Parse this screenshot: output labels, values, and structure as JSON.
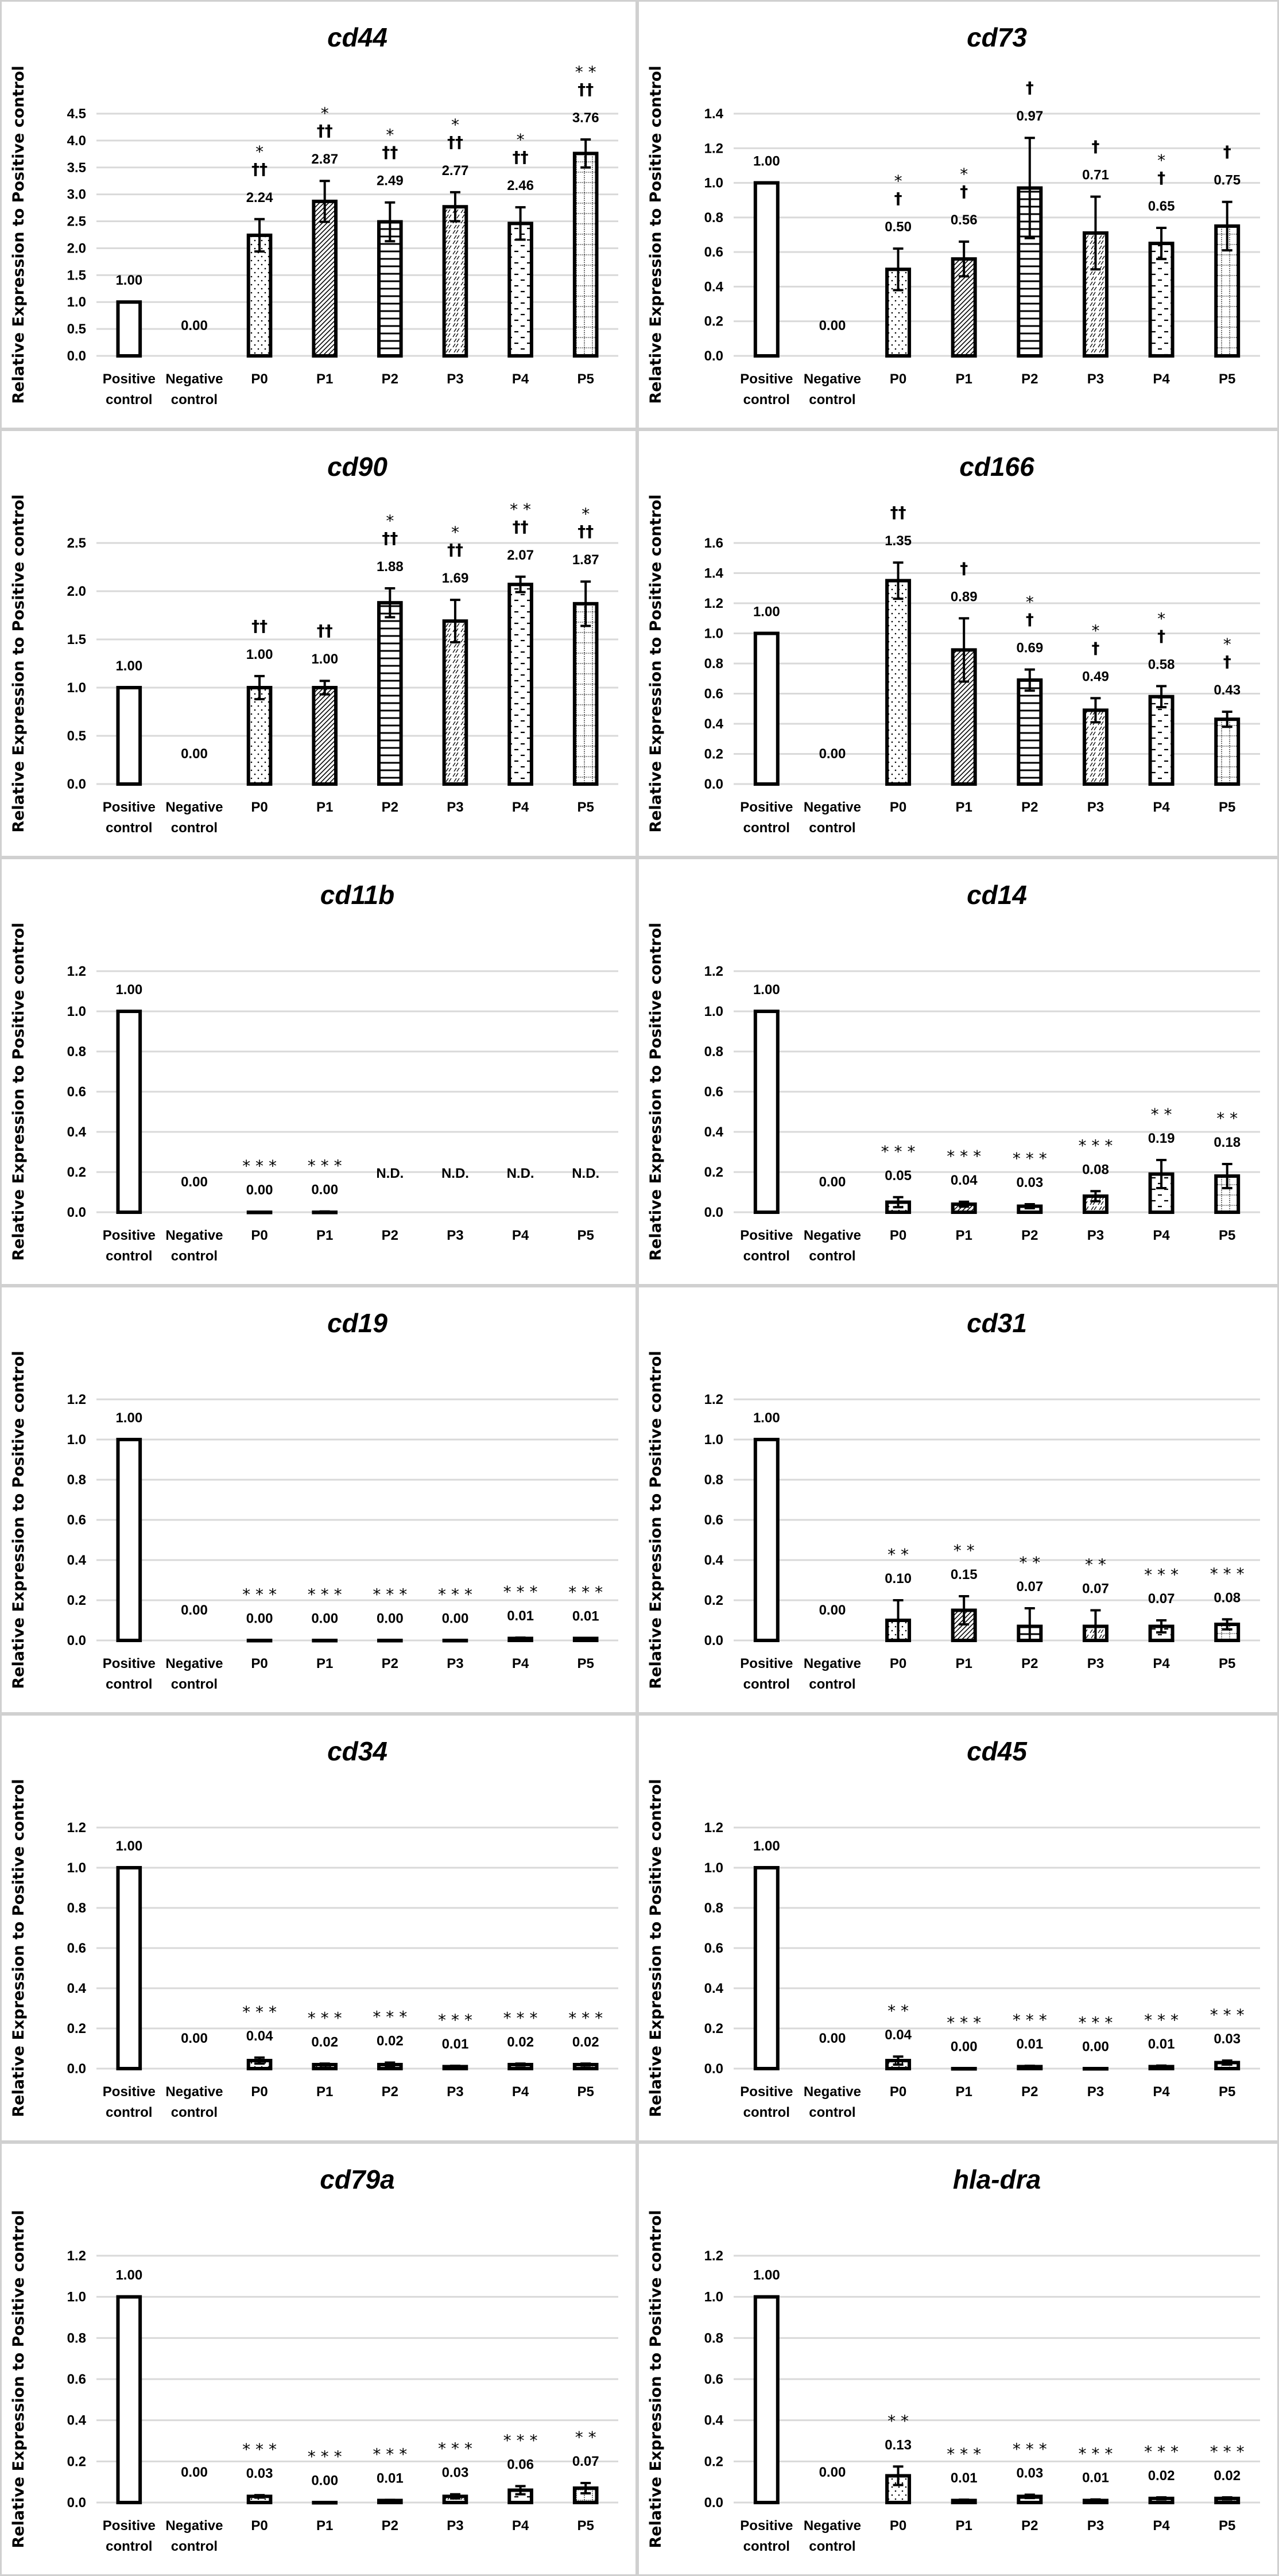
{
  "figure": {
    "ylabel": "Relative Expression to Positive control",
    "categories": [
      "Positive control",
      "Negative control",
      "P0",
      "P1",
      "P2",
      "P3",
      "P4",
      "P5"
    ],
    "category_lines": [
      [
        "Positive",
        "control"
      ],
      [
        "Negative",
        "control"
      ],
      [
        "P0"
      ],
      [
        "P1"
      ],
      [
        "P2"
      ],
      [
        "P3"
      ],
      [
        "P4"
      ],
      [
        "P5"
      ]
    ],
    "pattern_legend": [
      "open",
      "none",
      "dots",
      "diagonal",
      "horizontal",
      "dashed-diagonal",
      "dashes",
      "grid"
    ]
  },
  "chart_data": [
    {
      "type": "bar",
      "title": "cd44",
      "xlabel": "",
      "ylabel": "Relative Expression to Positive control",
      "categories": [
        "Positive control",
        "Negative control",
        "P0",
        "P1",
        "P2",
        "P3",
        "P4",
        "P5"
      ],
      "values": [
        1.0,
        0.0,
        2.24,
        2.87,
        2.49,
        2.77,
        2.46,
        3.76
      ],
      "value_labels": [
        "1.00",
        "0.00",
        "2.24",
        "2.87",
        "2.49",
        "2.77",
        "2.46",
        "3.76"
      ],
      "errors": [
        0,
        0,
        0.3,
        0.38,
        0.36,
        0.27,
        0.3,
        0.26
      ],
      "annotations": [
        [],
        [],
        [
          "*",
          "††"
        ],
        [
          "*",
          "††"
        ],
        [
          "*",
          "††"
        ],
        [
          "*",
          "††"
        ],
        [
          "*",
          "††"
        ],
        [
          "* *",
          "††"
        ]
      ],
      "ylim": [
        0,
        4.5
      ],
      "yticks": [
        "0.0",
        "0.5",
        "1.0",
        "1.5",
        "2.0",
        "2.5",
        "3.0",
        "3.5",
        "4.0",
        "4.5"
      ],
      "ystep": 0.5,
      "grid": true
    },
    {
      "type": "bar",
      "title": "cd73",
      "xlabel": "",
      "ylabel": "Relative Expression to Positive control",
      "categories": [
        "Positive control",
        "Negative control",
        "P0",
        "P1",
        "P2",
        "P3",
        "P4",
        "P5"
      ],
      "values": [
        1.0,
        0.0,
        0.5,
        0.56,
        0.97,
        0.71,
        0.65,
        0.75
      ],
      "value_labels": [
        "1.00",
        "0.00",
        "0.50",
        "0.56",
        "0.97",
        "0.71",
        "0.65",
        "0.75"
      ],
      "errors": [
        0,
        0,
        0.12,
        0.1,
        0.29,
        0.21,
        0.09,
        0.14
      ],
      "annotations": [
        [],
        [],
        [
          "*",
          "†"
        ],
        [
          "*",
          "†"
        ],
        [
          "†"
        ],
        [
          "†"
        ],
        [
          "*",
          "†"
        ],
        [
          "†"
        ]
      ],
      "ylim": [
        0,
        1.4
      ],
      "yticks": [
        "0.0",
        "0.2",
        "0.4",
        "0.6",
        "0.8",
        "1.0",
        "1.2",
        "1.4"
      ],
      "ystep": 0.2,
      "grid": true
    },
    {
      "type": "bar",
      "title": "cd90",
      "xlabel": "",
      "ylabel": "Relative Expression to Positive control",
      "categories": [
        "Positive control",
        "Negative control",
        "P0",
        "P1",
        "P2",
        "P3",
        "P4",
        "P5"
      ],
      "values": [
        1.0,
        0.0,
        1.0,
        1.0,
        1.88,
        1.69,
        2.07,
        1.87
      ],
      "value_labels": [
        "1.00",
        "0.00",
        "1.00",
        "1.00",
        "1.88",
        "1.69",
        "2.07",
        "1.87"
      ],
      "errors": [
        0,
        0,
        0.12,
        0.07,
        0.15,
        0.22,
        0.08,
        0.23
      ],
      "annotations": [
        [],
        [],
        [
          "††"
        ],
        [
          "††"
        ],
        [
          "*",
          "††"
        ],
        [
          "*",
          "††"
        ],
        [
          "* *",
          "††"
        ],
        [
          "*",
          "††"
        ]
      ],
      "ylim": [
        0,
        2.5
      ],
      "yticks": [
        "0.0",
        "0.5",
        "1.0",
        "1.5",
        "2.0",
        "2.5"
      ],
      "ystep": 0.5,
      "grid": true
    },
    {
      "type": "bar",
      "title": "cd166",
      "xlabel": "",
      "ylabel": "Relative Expression to Positive control",
      "categories": [
        "Positive control",
        "Negative control",
        "P0",
        "P1",
        "P2",
        "P3",
        "P4",
        "P5"
      ],
      "values": [
        1.0,
        0.0,
        1.35,
        0.89,
        0.69,
        0.49,
        0.58,
        0.43
      ],
      "value_labels": [
        "1.00",
        "0.00",
        "1.35",
        "0.89",
        "0.69",
        "0.49",
        "0.58",
        "0.43"
      ],
      "errors": [
        0,
        0,
        0.12,
        0.21,
        0.07,
        0.08,
        0.07,
        0.05
      ],
      "annotations": [
        [],
        [],
        [
          "††"
        ],
        [
          "†"
        ],
        [
          "*",
          "†"
        ],
        [
          "*",
          "†"
        ],
        [
          "*",
          "†"
        ],
        [
          "*",
          "†"
        ]
      ],
      "ylim": [
        0,
        1.6
      ],
      "yticks": [
        "0.0",
        "0.2",
        "0.4",
        "0.6",
        "0.8",
        "1.0",
        "1.2",
        "1.4",
        "1.6"
      ],
      "ystep": 0.2,
      "grid": true
    },
    {
      "type": "bar",
      "title": "cd11b",
      "xlabel": "",
      "ylabel": "Relative Expression to Positive control",
      "categories": [
        "Positive control",
        "Negative control",
        "P0",
        "P1",
        "P2",
        "P3",
        "P4",
        "P5"
      ],
      "values": [
        1.0,
        0.0,
        0.0,
        0.0,
        null,
        null,
        null,
        null
      ],
      "value_labels": [
        "1.00",
        "0.00",
        "0.00",
        "0.00",
        "N.D.",
        "N.D.",
        "N.D.",
        "N.D."
      ],
      "errors": [
        0,
        0,
        0.003,
        0.004,
        0,
        0,
        0,
        0
      ],
      "annotations": [
        [],
        [],
        [
          "* * *"
        ],
        [
          "* * *"
        ],
        [],
        [],
        [],
        []
      ],
      "ylim": [
        0,
        1.2
      ],
      "yticks": [
        "0.0",
        "0.2",
        "0.4",
        "0.6",
        "0.8",
        "1.0",
        "1.2"
      ],
      "ystep": 0.2,
      "grid": true
    },
    {
      "type": "bar",
      "title": "cd14",
      "xlabel": "",
      "ylabel": "Relative Expression to Positive control",
      "categories": [
        "Positive control",
        "Negative control",
        "P0",
        "P1",
        "P2",
        "P3",
        "P4",
        "P5"
      ],
      "values": [
        1.0,
        0.0,
        0.05,
        0.04,
        0.03,
        0.08,
        0.19,
        0.18
      ],
      "value_labels": [
        "1.00",
        "0.00",
        "0.05",
        "0.04",
        "0.03",
        "0.08",
        "0.19",
        "0.18"
      ],
      "errors": [
        0,
        0,
        0.025,
        0.012,
        0.01,
        0.025,
        0.07,
        0.06
      ],
      "annotations": [
        [],
        [],
        [
          "* * *"
        ],
        [
          "* * *"
        ],
        [
          "* * *"
        ],
        [
          "* * *"
        ],
        [
          "* *"
        ],
        [
          "* *"
        ]
      ],
      "ylim": [
        0,
        1.2
      ],
      "yticks": [
        "0.0",
        "0.2",
        "0.4",
        "0.6",
        "0.8",
        "1.0",
        "1.2"
      ],
      "ystep": 0.2,
      "grid": true
    },
    {
      "type": "bar",
      "title": "cd19",
      "xlabel": "",
      "ylabel": "Relative Expression to Positive control",
      "categories": [
        "Positive control",
        "Negative control",
        "P0",
        "P1",
        "P2",
        "P3",
        "P4",
        "P5"
      ],
      "values": [
        1.0,
        0.0,
        0.0,
        0.0,
        0.0,
        0.0,
        0.01,
        0.01
      ],
      "value_labels": [
        "1.00",
        "0.00",
        "0.00",
        "0.00",
        "0.00",
        "0.00",
        "0.01",
        "0.01"
      ],
      "errors": [
        0,
        0,
        0.002,
        0.002,
        0.002,
        0.002,
        0.004,
        0.003
      ],
      "annotations": [
        [],
        [],
        [
          "* * *"
        ],
        [
          "* * *"
        ],
        [
          "* * *"
        ],
        [
          "* * *"
        ],
        [
          "* * *"
        ],
        [
          "* * *"
        ]
      ],
      "ylim": [
        0,
        1.2
      ],
      "yticks": [
        "0.0",
        "0.2",
        "0.4",
        "0.6",
        "0.8",
        "1.0",
        "1.2"
      ],
      "ystep": 0.2,
      "grid": true
    },
    {
      "type": "bar",
      "title": "cd31",
      "xlabel": "",
      "ylabel": "Relative Expression to Positive control",
      "categories": [
        "Positive control",
        "Negative control",
        "P0",
        "P1",
        "P2",
        "P3",
        "P4",
        "P5"
      ],
      "values": [
        1.0,
        0.0,
        0.1,
        0.15,
        0.07,
        0.07,
        0.07,
        0.08
      ],
      "value_labels": [
        "1.00",
        "0.00",
        "0.10",
        "0.15",
        "0.07",
        "0.07",
        "0.07",
        "0.08"
      ],
      "errors": [
        0,
        0,
        0.1,
        0.07,
        0.09,
        0.08,
        0.03,
        0.025
      ],
      "annotations": [
        [],
        [],
        [
          "* *"
        ],
        [
          "* *"
        ],
        [
          "* *"
        ],
        [
          "* *"
        ],
        [
          "* * *"
        ],
        [
          "* * *"
        ]
      ],
      "ylim": [
        0,
        1.2
      ],
      "yticks": [
        "0.0",
        "0.2",
        "0.4",
        "0.6",
        "0.8",
        "1.0",
        "1.2"
      ],
      "ystep": 0.2,
      "grid": true
    },
    {
      "type": "bar",
      "title": "cd34",
      "xlabel": "",
      "ylabel": "Relative Expression to Positive control",
      "categories": [
        "Positive control",
        "Negative control",
        "P0",
        "P1",
        "P2",
        "P3",
        "P4",
        "P5"
      ],
      "values": [
        1.0,
        0.0,
        0.04,
        0.02,
        0.02,
        0.01,
        0.02,
        0.02
      ],
      "value_labels": [
        "1.00",
        "0.00",
        "0.04",
        "0.02",
        "0.02",
        "0.01",
        "0.02",
        "0.02"
      ],
      "errors": [
        0,
        0,
        0.015,
        0.005,
        0.01,
        0.004,
        0.005,
        0.005
      ],
      "annotations": [
        [],
        [],
        [
          "* * *"
        ],
        [
          "* * *"
        ],
        [
          "* * *"
        ],
        [
          "* * *"
        ],
        [
          "* * *"
        ],
        [
          "* * *"
        ]
      ],
      "ylim": [
        0,
        1.2
      ],
      "yticks": [
        "0.0",
        "0.2",
        "0.4",
        "0.6",
        "0.8",
        "1.0",
        "1.2"
      ],
      "ystep": 0.2,
      "grid": true
    },
    {
      "type": "bar",
      "title": "cd45",
      "xlabel": "",
      "ylabel": "Relative Expression to Positive control",
      "categories": [
        "Positive control",
        "Negative control",
        "P0",
        "P1",
        "P2",
        "P3",
        "P4",
        "P5"
      ],
      "values": [
        1.0,
        0.0,
        0.04,
        0.0,
        0.01,
        0.0,
        0.01,
        0.03
      ],
      "value_labels": [
        "1.00",
        "0.00",
        "0.04",
        "0.00",
        "0.01",
        "0.00",
        "0.01",
        "0.03"
      ],
      "errors": [
        0,
        0,
        0.02,
        0.002,
        0.004,
        0.002,
        0.005,
        0.01
      ],
      "annotations": [
        [],
        [],
        [
          "* *"
        ],
        [
          "* * *"
        ],
        [
          "* * *"
        ],
        [
          "* * *"
        ],
        [
          "* * *"
        ],
        [
          "* * *"
        ]
      ],
      "ylim": [
        0,
        1.2
      ],
      "yticks": [
        "0.0",
        "0.2",
        "0.4",
        "0.6",
        "0.8",
        "1.0",
        "1.2"
      ],
      "ystep": 0.2,
      "grid": true
    },
    {
      "type": "bar",
      "title": "cd79a",
      "xlabel": "",
      "ylabel": "Relative Expression to Positive control",
      "categories": [
        "Positive control",
        "Negative control",
        "P0",
        "P1",
        "P2",
        "P3",
        "P4",
        "P5"
      ],
      "values": [
        1.0,
        0.0,
        0.03,
        0.0,
        0.01,
        0.03,
        0.06,
        0.07
      ],
      "value_labels": [
        "1.00",
        "0.00",
        "0.03",
        "0.00",
        "0.01",
        "0.03",
        "0.06",
        "0.07"
      ],
      "errors": [
        0,
        0,
        0.006,
        0.002,
        0.003,
        0.01,
        0.02,
        0.025
      ],
      "annotations": [
        [],
        [],
        [
          "* * *"
        ],
        [
          "* * *"
        ],
        [
          "* * *"
        ],
        [
          "* * *"
        ],
        [
          "* * *"
        ],
        [
          "* *"
        ]
      ],
      "ylim": [
        0,
        1.2
      ],
      "yticks": [
        "0.0",
        "0.2",
        "0.4",
        "0.6",
        "0.8",
        "1.0",
        "1.2"
      ],
      "ystep": 0.2,
      "grid": true
    },
    {
      "type": "bar",
      "title": "hla-dra",
      "xlabel": "",
      "ylabel": "Relative Expression to Positive control",
      "categories": [
        "Positive control",
        "Negative control",
        "P0",
        "P1",
        "P2",
        "P3",
        "P4",
        "P5"
      ],
      "values": [
        1.0,
        0.0,
        0.13,
        0.01,
        0.03,
        0.01,
        0.02,
        0.02
      ],
      "value_labels": [
        "1.00",
        "0.00",
        "0.13",
        "0.01",
        "0.03",
        "0.01",
        "0.02",
        "0.02"
      ],
      "errors": [
        0,
        0,
        0.045,
        0.004,
        0.008,
        0.005,
        0.005,
        0.005
      ],
      "annotations": [
        [],
        [],
        [
          "* *"
        ],
        [
          "* * *"
        ],
        [
          "* * *"
        ],
        [
          "* * *"
        ],
        [
          "* * *"
        ],
        [
          "* * *"
        ]
      ],
      "ylim": [
        0,
        1.2
      ],
      "yticks": [
        "0.0",
        "0.2",
        "0.4",
        "0.6",
        "0.8",
        "1.0",
        "1.2"
      ],
      "ystep": 0.2,
      "grid": true
    }
  ]
}
